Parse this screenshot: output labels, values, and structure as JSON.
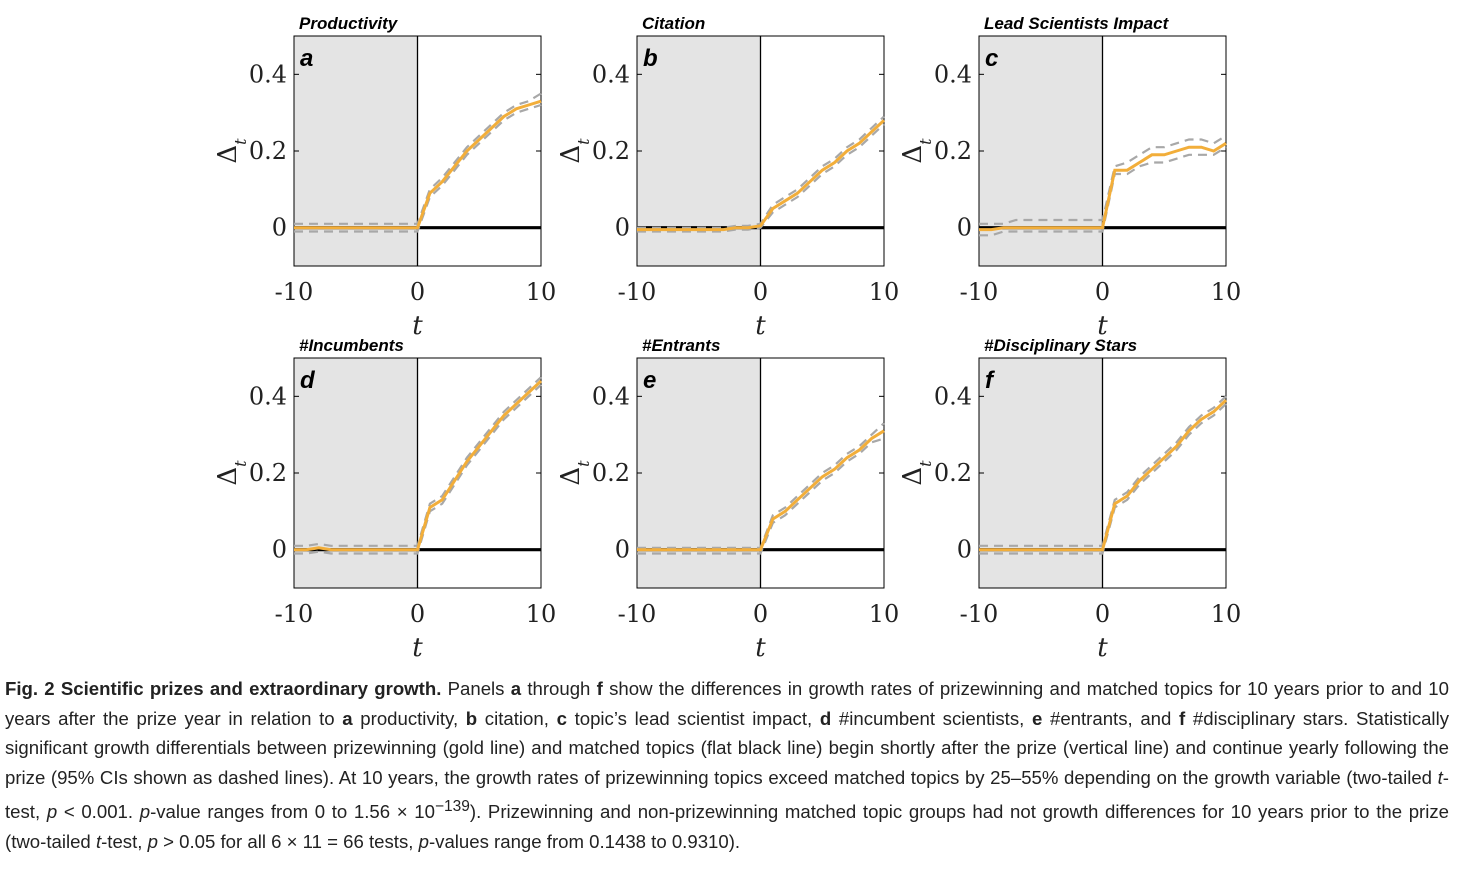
{
  "chart_data": [
    {
      "type": "line",
      "label": "a",
      "title": "Productivity",
      "xlabel": "t",
      "ylabel": "Δt",
      "xlim": [
        -10,
        10
      ],
      "ylim": [
        -0.1,
        0.5
      ],
      "yticks": [
        "0",
        "0.2",
        "0.4"
      ],
      "xticks": [
        "-10",
        "0",
        "10"
      ],
      "x": [
        -10,
        -9,
        -8,
        -7,
        -6,
        -5,
        -4,
        -3,
        -2,
        -1,
        0,
        1,
        2,
        3,
        4,
        5,
        6,
        7,
        8,
        9,
        10
      ],
      "series": [
        {
          "name": "prizewinning",
          "values": [
            0.0,
            0.0,
            0.0,
            0.0,
            0.0,
            0.0,
            0.0,
            0.0,
            0.0,
            0.0,
            0.0,
            0.09,
            0.12,
            0.16,
            0.2,
            0.23,
            0.26,
            0.29,
            0.31,
            0.32,
            0.33
          ]
        },
        {
          "name": "ci_upper",
          "values": [
            0.01,
            0.01,
            0.01,
            0.01,
            0.01,
            0.01,
            0.01,
            0.01,
            0.01,
            0.01,
            0.01,
            0.1,
            0.13,
            0.17,
            0.21,
            0.24,
            0.27,
            0.3,
            0.32,
            0.33,
            0.35
          ]
        },
        {
          "name": "ci_lower",
          "values": [
            -0.01,
            -0.01,
            -0.01,
            -0.01,
            -0.01,
            -0.01,
            -0.01,
            -0.01,
            -0.01,
            -0.01,
            -0.01,
            0.08,
            0.11,
            0.15,
            0.19,
            0.22,
            0.25,
            0.28,
            0.3,
            0.31,
            0.32
          ]
        },
        {
          "name": "matched",
          "values": [
            0,
            0,
            0,
            0,
            0,
            0,
            0,
            0,
            0,
            0,
            0,
            0,
            0,
            0,
            0,
            0,
            0,
            0,
            0,
            0,
            0
          ]
        }
      ]
    },
    {
      "type": "line",
      "label": "b",
      "title": "Citation",
      "xlabel": "t",
      "ylabel": "Δt",
      "xlim": [
        -10,
        10
      ],
      "ylim": [
        -0.1,
        0.5
      ],
      "yticks": [
        "0",
        "0.2",
        "0.4"
      ],
      "xticks": [
        "-10",
        "0",
        "10"
      ],
      "x": [
        -10,
        -9,
        -8,
        -7,
        -6,
        -5,
        -4,
        -3,
        -2,
        -1,
        0,
        1,
        2,
        3,
        4,
        5,
        6,
        7,
        8,
        9,
        10
      ],
      "series": [
        {
          "name": "prizewinning",
          "values": [
            -0.005,
            -0.005,
            -0.005,
            -0.005,
            -0.005,
            -0.005,
            -0.005,
            -0.005,
            0.0,
            0.0,
            0.005,
            0.05,
            0.07,
            0.09,
            0.12,
            0.15,
            0.17,
            0.2,
            0.22,
            0.25,
            0.28
          ]
        },
        {
          "name": "ci_upper",
          "values": [
            0.0,
            0.0,
            0.0,
            0.0,
            0.0,
            0.0,
            0.0,
            0.0,
            0.005,
            0.005,
            0.01,
            0.06,
            0.08,
            0.1,
            0.13,
            0.16,
            0.18,
            0.21,
            0.23,
            0.26,
            0.29
          ]
        },
        {
          "name": "ci_lower",
          "values": [
            -0.01,
            -0.01,
            -0.01,
            -0.01,
            -0.01,
            -0.01,
            -0.01,
            -0.01,
            -0.005,
            -0.005,
            0.0,
            0.04,
            0.06,
            0.08,
            0.11,
            0.14,
            0.16,
            0.19,
            0.21,
            0.24,
            0.27
          ]
        },
        {
          "name": "matched",
          "values": [
            0,
            0,
            0,
            0,
            0,
            0,
            0,
            0,
            0,
            0,
            0,
            0,
            0,
            0,
            0,
            0,
            0,
            0,
            0,
            0,
            0
          ]
        }
      ]
    },
    {
      "type": "line",
      "label": "c",
      "title": "Lead Scientists Impact",
      "xlabel": "t",
      "ylabel": "Δt",
      "xlim": [
        -10,
        10
      ],
      "ylim": [
        -0.1,
        0.5
      ],
      "yticks": [
        "0",
        "0.2",
        "0.4"
      ],
      "xticks": [
        "-10",
        "0",
        "10"
      ],
      "x": [
        -10,
        -9,
        -8,
        -7,
        -6,
        -5,
        -4,
        -3,
        -2,
        -1,
        0,
        1,
        2,
        3,
        4,
        5,
        6,
        7,
        8,
        9,
        10
      ],
      "series": [
        {
          "name": "prizewinning",
          "values": [
            -0.005,
            -0.005,
            0.0,
            0.0,
            0.0,
            0.0,
            0.0,
            0.0,
            0.0,
            0.0,
            0.0,
            0.15,
            0.15,
            0.17,
            0.19,
            0.19,
            0.2,
            0.21,
            0.21,
            0.2,
            0.22
          ]
        },
        {
          "name": "ci_upper",
          "values": [
            0.01,
            0.01,
            0.01,
            0.02,
            0.02,
            0.02,
            0.02,
            0.02,
            0.02,
            0.02,
            0.02,
            0.16,
            0.17,
            0.19,
            0.21,
            0.21,
            0.22,
            0.23,
            0.23,
            0.22,
            0.24
          ]
        },
        {
          "name": "ci_lower",
          "values": [
            -0.02,
            -0.02,
            -0.01,
            -0.01,
            -0.01,
            -0.01,
            -0.01,
            -0.01,
            -0.01,
            -0.01,
            -0.01,
            0.14,
            0.14,
            0.16,
            0.17,
            0.17,
            0.18,
            0.19,
            0.19,
            0.19,
            0.21
          ]
        },
        {
          "name": "matched",
          "values": [
            0,
            0,
            0,
            0,
            0,
            0,
            0,
            0,
            0,
            0,
            0,
            0,
            0,
            0,
            0,
            0,
            0,
            0,
            0,
            0,
            0
          ]
        }
      ]
    },
    {
      "type": "line",
      "label": "d",
      "title": "#Incumbents",
      "xlabel": "t",
      "ylabel": "Δt",
      "xlim": [
        -10,
        10
      ],
      "ylim": [
        -0.1,
        0.5
      ],
      "yticks": [
        "0",
        "0.2",
        "0.4"
      ],
      "xticks": [
        "-10",
        "0",
        "10"
      ],
      "x": [
        -10,
        -9,
        -8,
        -7,
        -6,
        -5,
        -4,
        -3,
        -2,
        -1,
        0,
        1,
        2,
        3,
        4,
        5,
        6,
        7,
        8,
        9,
        10
      ],
      "series": [
        {
          "name": "prizewinning",
          "values": [
            0.0,
            0.0,
            0.005,
            0.0,
            0.0,
            0.0,
            0.0,
            0.0,
            0.0,
            0.0,
            0.0,
            0.11,
            0.13,
            0.18,
            0.23,
            0.27,
            0.31,
            0.35,
            0.38,
            0.41,
            0.44
          ]
        },
        {
          "name": "ci_upper",
          "values": [
            0.01,
            0.01,
            0.015,
            0.01,
            0.01,
            0.01,
            0.01,
            0.01,
            0.01,
            0.01,
            0.01,
            0.12,
            0.14,
            0.19,
            0.24,
            0.28,
            0.32,
            0.36,
            0.39,
            0.42,
            0.45
          ]
        },
        {
          "name": "ci_lower",
          "values": [
            -0.01,
            -0.01,
            -0.005,
            -0.01,
            -0.01,
            -0.01,
            -0.01,
            -0.01,
            -0.01,
            -0.01,
            -0.01,
            0.1,
            0.12,
            0.17,
            0.22,
            0.26,
            0.3,
            0.34,
            0.37,
            0.4,
            0.43
          ]
        },
        {
          "name": "matched",
          "values": [
            0,
            0,
            0,
            0,
            0,
            0,
            0,
            0,
            0,
            0,
            0,
            0,
            0,
            0,
            0,
            0,
            0,
            0,
            0,
            0,
            0
          ]
        }
      ]
    },
    {
      "type": "line",
      "label": "e",
      "title": "#Entrants",
      "xlabel": "t",
      "ylabel": "Δt",
      "xlim": [
        -10,
        10
      ],
      "ylim": [
        -0.1,
        0.5
      ],
      "yticks": [
        "0",
        "0.2",
        "0.4"
      ],
      "xticks": [
        "-10",
        "0",
        "10"
      ],
      "x": [
        -10,
        -9,
        -8,
        -7,
        -6,
        -5,
        -4,
        -3,
        -2,
        -1,
        0,
        1,
        2,
        3,
        4,
        5,
        6,
        7,
        8,
        9,
        10
      ],
      "series": [
        {
          "name": "prizewinning",
          "values": [
            0.0,
            0.0,
            0.0,
            0.0,
            0.0,
            0.0,
            0.0,
            0.0,
            0.0,
            0.0,
            0.0,
            0.08,
            0.1,
            0.13,
            0.16,
            0.19,
            0.21,
            0.24,
            0.26,
            0.29,
            0.31
          ]
        },
        {
          "name": "ci_upper",
          "values": [
            0.005,
            0.005,
            0.005,
            0.005,
            0.005,
            0.005,
            0.005,
            0.005,
            0.005,
            0.005,
            0.005,
            0.09,
            0.11,
            0.14,
            0.17,
            0.2,
            0.22,
            0.25,
            0.27,
            0.3,
            0.33
          ]
        },
        {
          "name": "ci_lower",
          "values": [
            -0.01,
            -0.01,
            -0.01,
            -0.01,
            -0.01,
            -0.01,
            -0.01,
            -0.01,
            -0.01,
            -0.01,
            -0.01,
            0.07,
            0.09,
            0.12,
            0.15,
            0.18,
            0.2,
            0.23,
            0.25,
            0.28,
            0.29
          ]
        },
        {
          "name": "matched",
          "values": [
            0,
            0,
            0,
            0,
            0,
            0,
            0,
            0,
            0,
            0,
            0,
            0,
            0,
            0,
            0,
            0,
            0,
            0,
            0,
            0,
            0
          ]
        }
      ]
    },
    {
      "type": "line",
      "label": "f",
      "title": "#Disciplinary Stars",
      "xlabel": "t",
      "ylabel": "Δt",
      "xlim": [
        -10,
        10
      ],
      "ylim": [
        -0.1,
        0.5
      ],
      "yticks": [
        "0",
        "0.2",
        "0.4"
      ],
      "xticks": [
        "-10",
        "0",
        "10"
      ],
      "x": [
        -10,
        -9,
        -8,
        -7,
        -6,
        -5,
        -4,
        -3,
        -2,
        -1,
        0,
        1,
        2,
        3,
        4,
        5,
        6,
        7,
        8,
        9,
        10
      ],
      "series": [
        {
          "name": "prizewinning",
          "values": [
            0.0,
            0.0,
            0.0,
            0.0,
            0.0,
            0.0,
            0.0,
            0.0,
            0.0,
            0.0,
            0.0,
            0.12,
            0.14,
            0.18,
            0.21,
            0.24,
            0.27,
            0.31,
            0.34,
            0.36,
            0.39
          ]
        },
        {
          "name": "ci_upper",
          "values": [
            0.01,
            0.01,
            0.01,
            0.01,
            0.01,
            0.01,
            0.01,
            0.01,
            0.01,
            0.01,
            0.01,
            0.13,
            0.15,
            0.19,
            0.22,
            0.25,
            0.28,
            0.32,
            0.35,
            0.37,
            0.4
          ]
        },
        {
          "name": "ci_lower",
          "values": [
            -0.01,
            -0.01,
            -0.01,
            -0.01,
            -0.01,
            -0.01,
            -0.01,
            -0.01,
            -0.01,
            -0.01,
            -0.01,
            0.11,
            0.13,
            0.17,
            0.2,
            0.23,
            0.26,
            0.3,
            0.33,
            0.35,
            0.38
          ]
        },
        {
          "name": "matched",
          "values": [
            0,
            0,
            0,
            0,
            0,
            0,
            0,
            0,
            0,
            0,
            0,
            0,
            0,
            0,
            0,
            0,
            0,
            0,
            0,
            0,
            0
          ]
        }
      ]
    }
  ],
  "colors": {
    "prize_line": "#f2ae3a",
    "ci_line": "#a8a8a8",
    "matched_line": "#000000",
    "pre_prize_shade": "#e4e4e4"
  },
  "caption": {
    "fig_label": "Fig. 2 Scientific prizes and extraordinary growth.",
    "s1": " Panels ",
    "a": "a",
    "s2": " through ",
    "f": "f",
    "s3": " show the differences in growth rates of prizewinning and matched topics for 10 years prior to and 10 years after the prize year in relation to ",
    "s4": " productivity, ",
    "b": "b",
    "s5": " citation, ",
    "c": "c",
    "s6": " topic’s lead scientist impact, ",
    "d": "d",
    "s7": " #incumbent scientists, ",
    "e": "e",
    "s8": " #entrants, and ",
    "s9": " #disciplinary stars. Statistically significant growth differentials between prizewinning (gold line) and matched topics (flat black line) begin shortly after the prize (vertical line) and continue yearly following the prize (95% CIs shown as dashed lines). At 10 years, the growth rates of prizewinning topics exceed matched topics by 25–55% depending on the growth variable (two-tailed ",
    "t": "t",
    "s10": "-test, ",
    "p": "p",
    "s11": " < 0.001. ",
    "s12": "-value ranges from 0 to 1.56 × 10",
    "exp": "−139",
    "s13": "). Prizewinning and non-prizewinning matched topic groups had not growth differences for 10 years prior to the prize (two-tailed ",
    "s14": "-test, ",
    "s15": " > 0.05 for all 6 × 11 = 66 tests, ",
    "s16": "-values range from 0.1438 to 0.9310)."
  }
}
